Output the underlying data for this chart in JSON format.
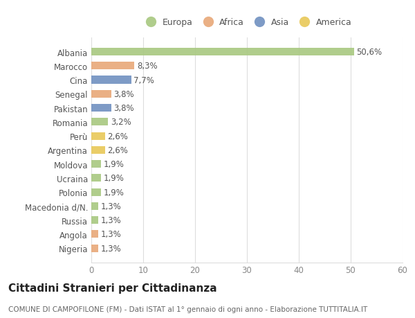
{
  "countries": [
    "Albania",
    "Marocco",
    "Cina",
    "Senegal",
    "Pakistan",
    "Romania",
    "Perù",
    "Argentina",
    "Moldova",
    "Ucraina",
    "Polonia",
    "Macedonia d/N.",
    "Russia",
    "Angola",
    "Nigeria"
  ],
  "values": [
    50.6,
    8.3,
    7.7,
    3.8,
    3.8,
    3.2,
    2.6,
    2.6,
    1.9,
    1.9,
    1.9,
    1.3,
    1.3,
    1.3,
    1.3
  ],
  "labels": [
    "50,6%",
    "8,3%",
    "7,7%",
    "3,8%",
    "3,8%",
    "3,2%",
    "2,6%",
    "2,6%",
    "1,9%",
    "1,9%",
    "1,9%",
    "1,3%",
    "1,3%",
    "1,3%",
    "1,3%"
  ],
  "continents": [
    "Europa",
    "Africa",
    "Asia",
    "Africa",
    "Asia",
    "Europa",
    "America",
    "America",
    "Europa",
    "Europa",
    "Europa",
    "Europa",
    "Europa",
    "Africa",
    "Africa"
  ],
  "colors": {
    "Europa": "#a8c880",
    "Africa": "#e8a878",
    "Asia": "#7090c0",
    "America": "#e8c858"
  },
  "title": "Cittadini Stranieri per Cittadinanza",
  "subtitle": "COMUNE DI CAMPOFILONE (FM) - Dati ISTAT al 1° gennaio di ogni anno - Elaborazione TUTTITALIA.IT",
  "xlim": [
    0,
    60
  ],
  "xticks": [
    0,
    10,
    20,
    30,
    40,
    50,
    60
  ],
  "background_color": "#ffffff",
  "plot_bg_color": "#ffffff",
  "bar_height": 0.55,
  "label_fontsize": 8.5,
  "title_fontsize": 11,
  "subtitle_fontsize": 7.5,
  "ytick_fontsize": 8.5,
  "xtick_fontsize": 8.5,
  "legend_order": [
    "Europa",
    "Africa",
    "Asia",
    "America"
  ],
  "legend_marker_color": {
    "Europa": "#a8c880",
    "Africa": "#e8a878",
    "Asia": "#7090c0",
    "America": "#e8c858"
  }
}
